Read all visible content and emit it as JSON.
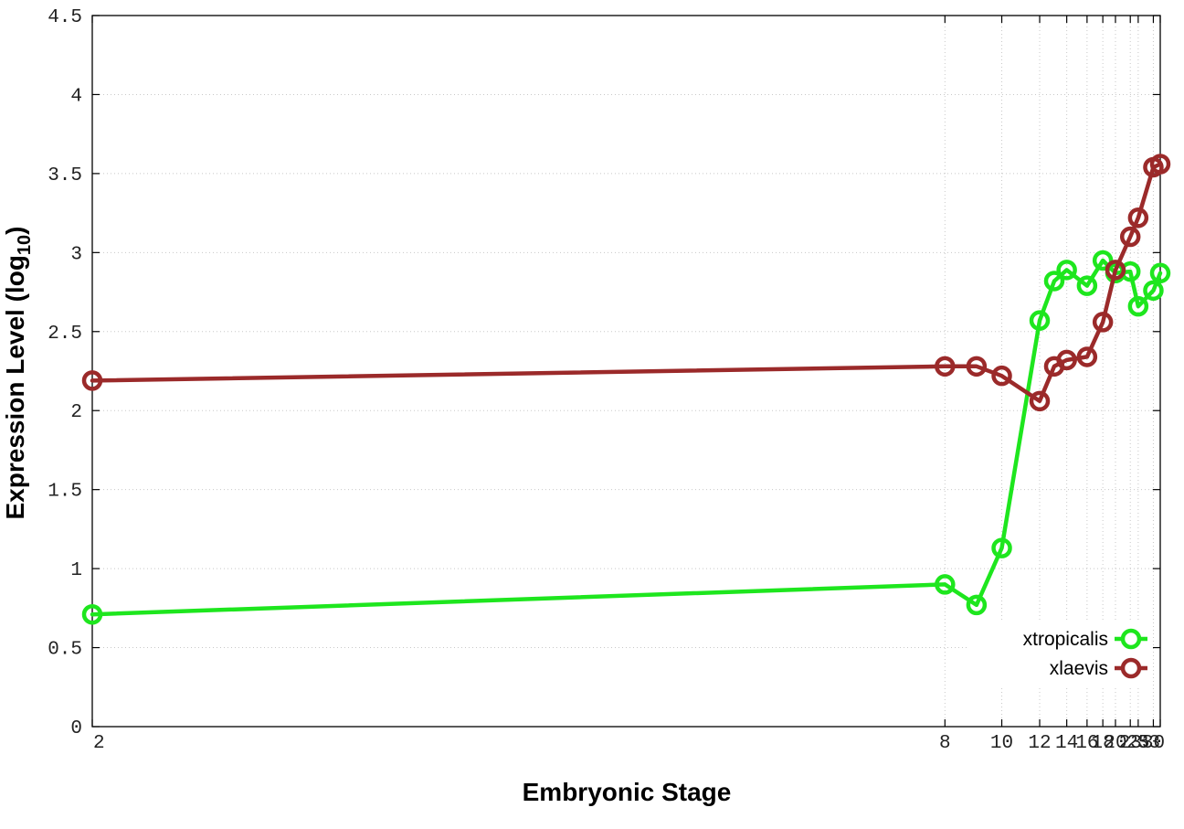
{
  "chart_data": {
    "type": "line",
    "xlabel": "Embryonic Stage",
    "ylabel_main": "Expression Level (log",
    "ylabel_sub": "10",
    "ylabel_close": ")",
    "xlim": [
      2,
      33
    ],
    "ylim": [
      0,
      4.5
    ],
    "x_ticks": [
      2,
      8,
      10,
      12,
      14,
      16,
      18,
      20,
      23,
      25,
      30,
      33
    ],
    "x_tick_labels": [
      "2",
      "8",
      "10",
      "12",
      "14",
      "16",
      "18",
      "20",
      "23",
      "25",
      "30",
      "33"
    ],
    "y_ticks": [
      0,
      0.5,
      1,
      1.5,
      2,
      2.5,
      3,
      3.5,
      4,
      4.5
    ],
    "y_tick_labels": [
      "0",
      "0.5",
      "1",
      "1.5",
      "2",
      "2.5",
      "3",
      "3.5",
      "4",
      "4.5"
    ],
    "x_axis_scale": "reciprocal",
    "grid": true,
    "legend_position": "bottom-right",
    "series": [
      {
        "name": "xtropicalis",
        "color": "#1ee61e",
        "x": [
          2,
          8,
          9,
          10,
          12,
          13,
          14,
          16,
          18,
          20,
          23,
          25,
          30,
          33
        ],
        "values": [
          0.71,
          0.9,
          0.77,
          1.13,
          2.57,
          2.82,
          2.89,
          2.79,
          2.95,
          2.87,
          2.88,
          2.66,
          2.76,
          2.87
        ]
      },
      {
        "name": "xlaevis",
        "color": "#9b2a2a",
        "x": [
          2,
          8,
          9,
          10,
          12,
          13,
          14,
          16,
          18,
          20,
          23,
          25,
          30,
          33
        ],
        "values": [
          2.19,
          2.28,
          2.28,
          2.22,
          2.06,
          2.28,
          2.32,
          2.34,
          2.56,
          2.89,
          3.1,
          3.22,
          3.54,
          3.56
        ]
      }
    ]
  }
}
